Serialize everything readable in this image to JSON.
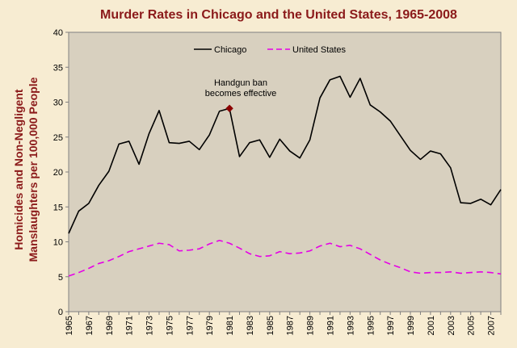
{
  "chart_data": {
    "type": "line",
    "title": "Murder Rates in Chicago and the United States, 1965-2008",
    "xlabel": "",
    "ylabel_lines": [
      "Homicides and Non-Negligent",
      "Manslaughters per 100,000 People"
    ],
    "ylim": [
      0,
      40
    ],
    "y_ticks": [
      0,
      5,
      10,
      15,
      20,
      25,
      30,
      35,
      40
    ],
    "x_tick_labels": [
      "1965",
      "1967",
      "1969",
      "1971",
      "1973",
      "1975",
      "1977",
      "1979",
      "1981",
      "1983",
      "1985",
      "1987",
      "1989",
      "1991",
      "1993",
      "1995",
      "1997",
      "1999",
      "2001",
      "2003",
      "2005",
      "2007"
    ],
    "x": [
      1965,
      1966,
      1967,
      1968,
      1969,
      1970,
      1971,
      1972,
      1973,
      1974,
      1975,
      1976,
      1977,
      1978,
      1979,
      1980,
      1981,
      1982,
      1983,
      1984,
      1985,
      1986,
      1987,
      1988,
      1989,
      1990,
      1991,
      1992,
      1993,
      1994,
      1995,
      1996,
      1997,
      1998,
      1999,
      2000,
      2001,
      2002,
      2003,
      2004,
      2005,
      2006,
      2007,
      2008
    ],
    "series": [
      {
        "name": "Chicago",
        "color": "#000000",
        "style": "solid",
        "values": [
          11.2,
          14.4,
          15.5,
          18.1,
          20.1,
          24.0,
          24.4,
          21.1,
          25.5,
          28.8,
          24.2,
          24.1,
          24.4,
          23.2,
          25.3,
          28.7,
          29.1,
          22.2,
          24.2,
          24.6,
          22.1,
          24.7,
          23.0,
          22.0,
          24.6,
          30.6,
          33.2,
          33.7,
          30.7,
          33.4,
          29.6,
          28.6,
          27.3,
          25.2,
          23.1,
          21.8,
          23.0,
          22.6,
          20.6,
          15.6,
          15.5,
          16.1,
          15.3,
          17.5
        ]
      },
      {
        "name": "United States",
        "color": "#e600e6",
        "style": "dashed",
        "values": [
          5.1,
          5.6,
          6.2,
          6.9,
          7.3,
          7.9,
          8.6,
          9.0,
          9.4,
          9.8,
          9.6,
          8.7,
          8.8,
          9.0,
          9.7,
          10.2,
          9.8,
          9.1,
          8.3,
          7.9,
          8.0,
          8.6,
          8.3,
          8.4,
          8.7,
          9.4,
          9.8,
          9.3,
          9.5,
          9.0,
          8.2,
          7.4,
          6.8,
          6.3,
          5.7,
          5.5,
          5.6,
          5.6,
          5.7,
          5.5,
          5.6,
          5.7,
          5.6,
          5.4
        ]
      }
    ],
    "annotation": {
      "lines": [
        "Handgun ban",
        "becomes effective"
      ],
      "x": 1981,
      "y": 29.1,
      "marker_color": "#8b0000"
    },
    "legend_placement": "top-center",
    "grid": false,
    "plot_background": "#d8d0bf",
    "page_background": "#f7ecd2",
    "title_color": "#8b1a1a"
  }
}
